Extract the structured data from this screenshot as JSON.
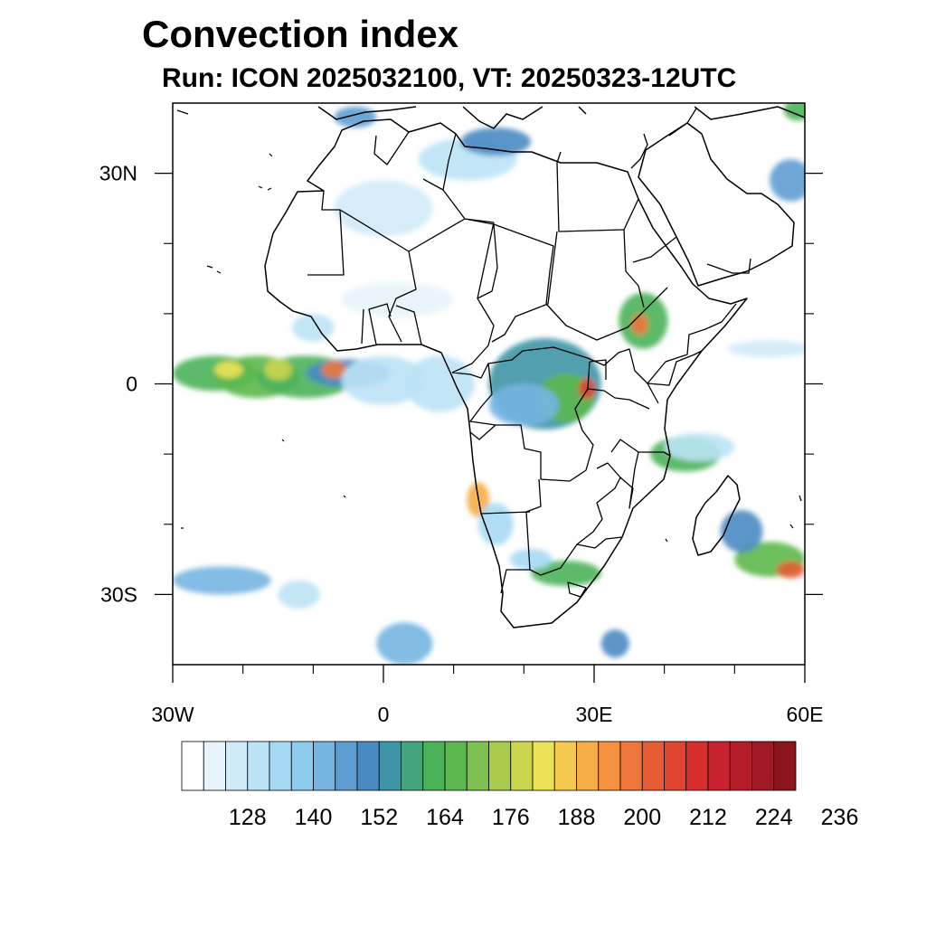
{
  "title": "Convection index",
  "subtitle": "Run: ICON 2025032100,  VT: 20250323-12UTC",
  "map": {
    "lon_range": [
      -30,
      60
    ],
    "lat_range": [
      -40,
      40
    ],
    "lon_ticks": [
      {
        "value": -30,
        "label": "30W"
      },
      {
        "value": 0,
        "label": "0"
      },
      {
        "value": 30,
        "label": "30E"
      },
      {
        "value": 60,
        "label": "60E"
      }
    ],
    "lat_ticks": [
      {
        "value": 30,
        "label": "30N"
      },
      {
        "value": 0,
        "label": "0"
      },
      {
        "value": -30,
        "label": "30S"
      }
    ],
    "minor_lon_ticks": [
      -20,
      -10,
      10,
      20,
      40,
      50
    ],
    "minor_lat_ticks": [
      20,
      10,
      -10,
      -20
    ],
    "border_color": "#000000",
    "convection_cells": [
      {
        "lon": -24,
        "lat": 1.5,
        "rlon": 6,
        "rlat": 2.5,
        "level": 160
      },
      {
        "lon": -18,
        "lat": 1.0,
        "rlon": 6,
        "rlat": 3.0,
        "level": 164
      },
      {
        "lon": -11,
        "lat": 1.0,
        "rlon": 7,
        "rlat": 3.0,
        "level": 160
      },
      {
        "lon": -5,
        "lat": 1.5,
        "rlon": 6,
        "rlat": 2.0,
        "level": 150
      },
      {
        "lon": -22,
        "lat": 2.0,
        "rlon": 2,
        "rlat": 1.2,
        "level": 180
      },
      {
        "lon": -15,
        "lat": 2.0,
        "rlon": 2,
        "rlat": 1.5,
        "level": 178
      },
      {
        "lon": -7,
        "lat": 2.0,
        "rlon": 1.8,
        "rlat": 1.2,
        "level": 196
      },
      {
        "lon": 0,
        "lat": 0.5,
        "rlon": 6,
        "rlat": 3.5,
        "level": 128
      },
      {
        "lon": 8,
        "lat": 0.0,
        "rlon": 5,
        "rlat": 4.0,
        "level": 130
      },
      {
        "lon": 23,
        "lat": 0.0,
        "rlon": 8,
        "rlat": 6.5,
        "level": 155
      },
      {
        "lon": 26,
        "lat": -2.0,
        "rlon": 4,
        "rlat": 3.5,
        "level": 166
      },
      {
        "lon": 29,
        "lat": -0.7,
        "rlon": 1.2,
        "rlat": 1.5,
        "level": 205
      },
      {
        "lon": 20,
        "lat": -3.0,
        "rlon": 5,
        "rlat": 3.0,
        "level": 140
      },
      {
        "lon": 37,
        "lat": 9.0,
        "rlon": 3.5,
        "rlat": 4.0,
        "level": 160
      },
      {
        "lon": 36.5,
        "lat": 8.5,
        "rlon": 1.2,
        "rlat": 1.5,
        "level": 196
      },
      {
        "lon": 43,
        "lat": -10.0,
        "rlon": 5,
        "rlat": 2.5,
        "level": 160
      },
      {
        "lon": 45,
        "lat": -9.0,
        "rlon": 5,
        "rlat": 2.0,
        "level": 130
      },
      {
        "lon": 13.5,
        "lat": -16.5,
        "rlon": 1.6,
        "rlat": 2.5,
        "level": 190
      },
      {
        "lon": 16,
        "lat": -20.0,
        "rlon": 2.5,
        "rlat": 3.0,
        "level": 135
      },
      {
        "lon": 26,
        "lat": -27.0,
        "rlon": 5,
        "rlat": 1.8,
        "level": 160
      },
      {
        "lon": 21,
        "lat": -25.0,
        "rlon": 3,
        "rlat": 1.5,
        "level": 135
      },
      {
        "lon": 55,
        "lat": -25.0,
        "rlon": 5,
        "rlat": 2.5,
        "level": 166
      },
      {
        "lon": 58,
        "lat": -26.5,
        "rlon": 2,
        "rlat": 1.2,
        "level": 200
      },
      {
        "lon": 51,
        "lat": -21.0,
        "rlon": 3,
        "rlat": 3.0,
        "level": 150
      },
      {
        "lon": -23,
        "lat": -28.0,
        "rlon": 7,
        "rlat": 2.0,
        "level": 140
      },
      {
        "lon": -12,
        "lat": -30.0,
        "rlon": 3,
        "rlat": 2.0,
        "level": 130
      },
      {
        "lon": 3,
        "lat": -37.0,
        "rlon": 4,
        "rlat": 3.0,
        "level": 140
      },
      {
        "lon": 33,
        "lat": -37.0,
        "rlon": 2,
        "rlat": 2.0,
        "level": 150
      },
      {
        "lon": 0,
        "lat": 25.0,
        "rlon": 7,
        "rlat": 4.0,
        "level": 125
      },
      {
        "lon": 12,
        "lat": 32.0,
        "rlon": 7,
        "rlat": 3.0,
        "level": 130
      },
      {
        "lon": 16,
        "lat": 34.5,
        "rlon": 5,
        "rlat": 2.0,
        "level": 150
      },
      {
        "lon": -4,
        "lat": 38.0,
        "rlon": 3,
        "rlat": 1.5,
        "level": 145
      },
      {
        "lon": 58,
        "lat": 29.0,
        "rlon": 3,
        "rlat": 3.0,
        "level": 145
      },
      {
        "lon": 59,
        "lat": 39.0,
        "rlon": 2,
        "rlat": 1.5,
        "level": 160
      },
      {
        "lon": 2,
        "lat": 12.0,
        "rlon": 8,
        "rlat": 2.5,
        "level": 120
      },
      {
        "lon": 55,
        "lat": 5.0,
        "rlon": 6,
        "rlat": 1.2,
        "level": 125
      },
      {
        "lon": -10,
        "lat": 8.0,
        "rlon": 3,
        "rlat": 2.0,
        "level": 130
      }
    ]
  },
  "colorbar": {
    "labels": [
      "128",
      "140",
      "152",
      "164",
      "176",
      "188",
      "200",
      "212",
      "224",
      "236"
    ],
    "colors": [
      "#ffffff",
      "#e8f4fb",
      "#d2ebf8",
      "#bde3f6",
      "#a6daf4",
      "#8ccbee",
      "#76b5e2",
      "#5e9dd2",
      "#4a8ac2",
      "#3f95a6",
      "#43a47e",
      "#4bb25a",
      "#5cb84e",
      "#7ec050",
      "#a9cc4f",
      "#cbd64f",
      "#ede357",
      "#f4c94f",
      "#f6ad47",
      "#f39141",
      "#ee763a",
      "#e65c33",
      "#df4530",
      "#d62f2e",
      "#c7222e",
      "#b51c2a",
      "#9f1a24",
      "#8a151d"
    ],
    "min_level": 116,
    "step": 4
  }
}
